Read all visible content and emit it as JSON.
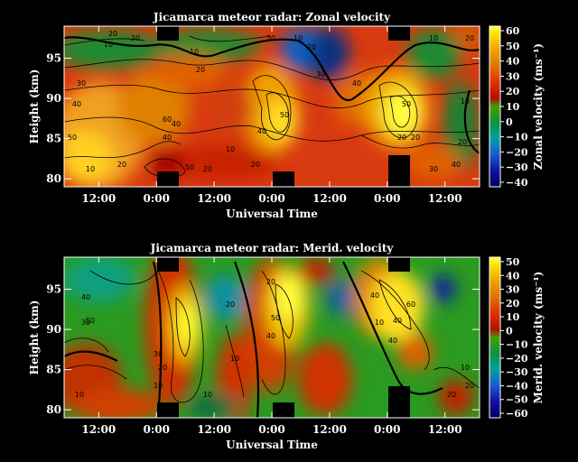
{
  "chart_data": [
    {
      "type": "heatmap",
      "title": "Jicamarca meteor radar: Zonal velocity",
      "xlabel": "Universal Time",
      "ylabel": "Height (km)",
      "x_ticks": [
        "12:00",
        "0:00",
        "12:00",
        "0:00",
        "12:00",
        "0:00",
        "12:00"
      ],
      "y_ticks": [
        "80",
        "85",
        "90",
        "95"
      ],
      "ylim": [
        79,
        99
      ],
      "colorbar": {
        "label": "Zonal velocity (ms⁻¹)",
        "ticks": [
          "60",
          "50",
          "40",
          "30",
          "20",
          "10",
          "0",
          "−10",
          "−20",
          "−30",
          "−40"
        ],
        "range": [
          -40,
          60
        ]
      },
      "contour_labels": [
        "10",
        "20",
        "30",
        "40",
        "50",
        "60",
        "10",
        "20",
        "40",
        "50",
        "20",
        "40",
        "40",
        "10",
        "20",
        "20",
        "50",
        "10",
        "20",
        "30",
        "40",
        "50",
        "20",
        "20",
        "30",
        "40",
        "20",
        "20",
        "10",
        "20",
        "20",
        "10",
        "10"
      ],
      "colors": {
        "high": "#ffff00",
        "mid": "#cc2200",
        "low": "#0000a0"
      }
    },
    {
      "type": "heatmap",
      "title": "Jicamarca meteor radar: Merid. velocity",
      "xlabel": "Universal Time",
      "ylabel": "Height (km)",
      "x_ticks": [
        "12:00",
        "0:00",
        "12:00",
        "0:00",
        "12:00",
        "0:00",
        "12:00"
      ],
      "y_ticks": [
        "80",
        "85",
        "90",
        "95"
      ],
      "ylim": [
        79,
        99
      ],
      "colorbar": {
        "label": "Merid. velocity (ms⁻¹)",
        "ticks": [
          "50",
          "40",
          "30",
          "20",
          "10",
          "0",
          "−10",
          "−20",
          "−30",
          "−40",
          "−50",
          "−60"
        ],
        "range": [
          -60,
          50
        ]
      },
      "contour_labels": [
        "40",
        "50",
        "30",
        "30",
        "20",
        "10",
        "20",
        "10",
        "40",
        "50",
        "40",
        "10",
        "40",
        "60",
        "40",
        "10",
        "20",
        "10",
        "10",
        "20",
        "20"
      ],
      "colors": {
        "high": "#ffff00",
        "mid": "#cc2200",
        "low": "#0000a0"
      }
    }
  ]
}
